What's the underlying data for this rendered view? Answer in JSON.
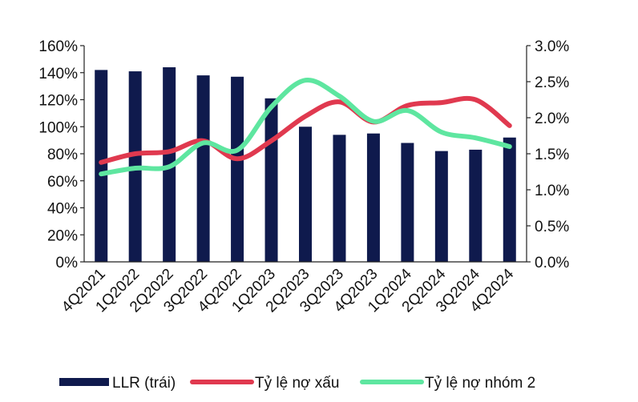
{
  "chart_data": {
    "type": "bar",
    "categories": [
      "4Q2021",
      "1Q2022",
      "2Q2022",
      "3Q2022",
      "4Q2022",
      "1Q2023",
      "2Q2023",
      "3Q2023",
      "4Q2023",
      "1Q2024",
      "2Q2024",
      "3Q2024",
      "4Q2024"
    ],
    "y_left": {
      "range": [
        0,
        160
      ],
      "ticks": [
        "0%",
        "20%",
        "40%",
        "60%",
        "80%",
        "100%",
        "120%",
        "140%",
        "160%"
      ]
    },
    "y_right": {
      "range": [
        0,
        3.0
      ],
      "ticks": [
        "0.0%",
        "0.5%",
        "1.0%",
        "1.5%",
        "2.0%",
        "2.5%",
        "3.0%"
      ]
    },
    "series": [
      {
        "name": "LLR (trái)",
        "type": "bar",
        "axis": "left",
        "color": "#0f1a4d",
        "values": [
          142,
          141,
          144,
          138,
          137,
          121,
          100,
          94,
          95,
          88,
          82,
          83,
          92
        ]
      },
      {
        "name": "Tỷ lệ nợ xấu",
        "type": "line",
        "axis": "right",
        "color": "#e0394f",
        "values": [
          1.38,
          1.5,
          1.53,
          1.68,
          1.43,
          1.68,
          2.02,
          2.22,
          1.94,
          2.17,
          2.21,
          2.25,
          1.89
        ]
      },
      {
        "name": "Tỷ lệ nợ nhóm 2",
        "type": "line",
        "axis": "right",
        "color": "#5ee6a0",
        "values": [
          1.22,
          1.3,
          1.32,
          1.65,
          1.55,
          2.15,
          2.52,
          2.3,
          1.95,
          2.1,
          1.8,
          1.72,
          1.6
        ]
      }
    ],
    "grid": false,
    "legend_position": "bottom"
  }
}
